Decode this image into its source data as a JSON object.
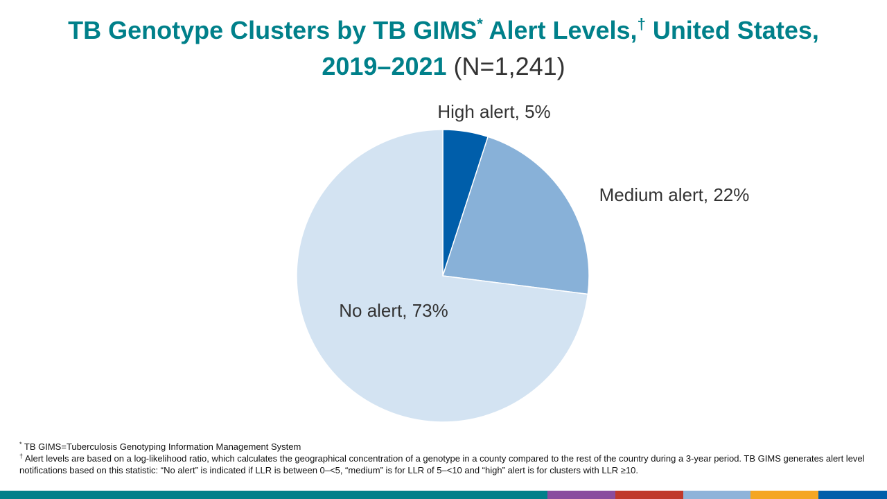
{
  "title": {
    "part1": "TB Genotype Clusters by TB GIMS",
    "mark1": "*",
    "part2": " Alert Levels,",
    "mark2": "†",
    "part3": " United States,",
    "part4": "2019–2021",
    "n": " (N=1,241)"
  },
  "chart_data": {
    "type": "pie",
    "slices": [
      {
        "label": "High alert, 5%",
        "value": 5,
        "color": "#005eaa"
      },
      {
        "label": "Medium alert, 22%",
        "value": 22,
        "color": "#88b1d8"
      },
      {
        "label": "No alert, 73%",
        "value": 73,
        "color": "#d3e3f2"
      }
    ],
    "start_angle": "12 o'clock",
    "direction": "clockwise"
  },
  "footnotes": {
    "mark1": "*",
    "note1": "TB GIMS=Tuberculosis Genotyping Information Management System",
    "mark2": "†",
    "note2": "Alert levels are based on a log-likelihood ratio, which calculates the geographical concentration of a genotype in a county compared to the rest of the country during a 3-year period. TB GIMS generates alert level notifications based on this statistic: “No alert” is indicated if LLR is between 0–<5, “medium” is for LLR of 5–<10 and “high” alert is for clusters with LLR ≥10."
  },
  "bottom_bar_colors": [
    "#00808a",
    "#8a4c9e",
    "#c0392b",
    "#8fb3d9",
    "#f5a623",
    "#005eaa"
  ]
}
